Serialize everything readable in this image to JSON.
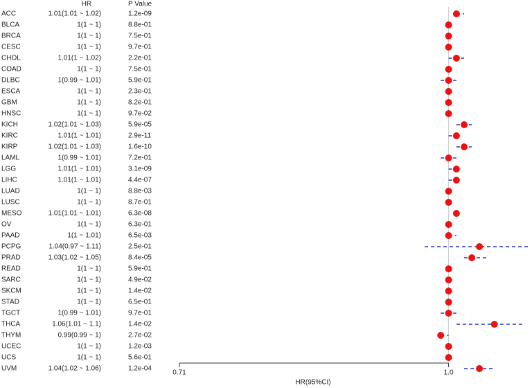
{
  "chart_data": {
    "type": "forest",
    "hr_header": "HR",
    "p_header": "P Value",
    "xlabel": "HR(95%CI)",
    "categories": [
      "ACC",
      "BLCA",
      "BRCA",
      "CESC",
      "CHOL",
      "COAD",
      "DLBC",
      "ESCA",
      "GBM",
      "HNSC",
      "KICH",
      "KIRC",
      "KIRP",
      "LAML",
      "LGG",
      "LIHC",
      "LUAD",
      "LUSC",
      "MESO",
      "OV",
      "PAAD",
      "PCPG",
      "PRAD",
      "READ",
      "SARC",
      "SKCM",
      "STAD",
      "TGCT",
      "THCA",
      "THYM",
      "UCEC",
      "UCS",
      "UVM"
    ],
    "values": [
      1.01,
      1,
      1,
      1,
      1.01,
      1,
      1,
      1,
      1,
      1,
      1.02,
      1.01,
      1.02,
      1,
      1.01,
      1.01,
      1,
      1,
      1.01,
      1,
      1,
      1.04,
      1.03,
      1,
      1,
      1,
      1,
      1,
      1.06,
      0.99,
      1,
      1,
      1.04
    ],
    "lower": [
      1.01,
      1,
      1,
      1,
      1,
      1,
      0.99,
      1,
      1,
      1,
      1.01,
      1,
      1.01,
      0.99,
      1,
      1,
      1,
      1,
      1.01,
      1,
      1,
      0.97,
      1.02,
      1,
      1,
      1,
      1,
      0.99,
      1.01,
      0.99,
      1,
      1,
      1.02
    ],
    "upper": [
      1.02,
      1,
      1,
      1,
      1.02,
      1,
      1.01,
      1,
      1,
      1,
      1.03,
      1.01,
      1.03,
      1.01,
      1.01,
      1.01,
      1,
      1,
      1.01,
      1,
      1.01,
      1.11,
      1.05,
      1,
      1,
      1,
      1,
      1.01,
      1.1,
      1,
      1,
      1,
      1.06
    ],
    "value_labels": [
      "1.01(1.01 ~ 1.02)",
      "1(1 ~ 1)",
      "1(1 ~ 1)",
      "1(1 ~ 1)",
      "1.01(1 ~ 1.02)",
      "1(1 ~ 1)",
      "1(0.99 ~ 1.01)",
      "1(1 ~ 1)",
      "1(1 ~ 1)",
      "1(1 ~ 1)",
      "1.02(1.01 ~ 1.03)",
      "1.01(1 ~ 1.01)",
      "1.02(1.01 ~ 1.03)",
      "1(0.99 ~ 1.01)",
      "1.01(1 ~ 1.01)",
      "1.01(1 ~ 1.01)",
      "1(1 ~ 1)",
      "1(1 ~ 1)",
      "1.01(1.01 ~ 1.01)",
      "1(1 ~ 1)",
      "1(1 ~ 1.01)",
      "1.04(0.97 ~ 1.11)",
      "1.03(1.02 ~ 1.05)",
      "1(1 ~ 1)",
      "1(1 ~ 1)",
      "1(1 ~ 1)",
      "1(1 ~ 1)",
      "1(0.99 ~ 1.01)",
      "1.06(1.01 ~ 1.1)",
      "0.99(0.99 ~ 1)",
      "1(1 ~ 1)",
      "1(1 ~ 1)",
      "1.04(1.02 ~ 1.06)"
    ],
    "p_values": [
      "1.2e-09",
      "8.8e-01",
      "7.5e-01",
      "9.7e-01",
      "2.2e-01",
      "7.5e-01",
      "5.9e-01",
      "2.3e-01",
      "8.2e-01",
      "9.7e-02",
      "5.9e-05",
      "2.9e-11",
      "1.6e-10",
      "7.2e-01",
      "3.1e-09",
      "4.4e-07",
      "8.8e-03",
      "8.7e-01",
      "6.3e-08",
      "6.3e-01",
      "6.5e-03",
      "2.5e-01",
      "8.4e-05",
      "5.9e-01",
      "4.9e-02",
      "1.4e-02",
      "6.5e-01",
      "9.7e-01",
      "1.4e-02",
      "2.7e-02",
      "1.2e-03",
      "5.6e-01",
      "1.2e-04"
    ],
    "xlim": [
      0.71,
      1.11
    ],
    "xticks": [
      {
        "value": 0.71,
        "label": "0.71"
      },
      {
        "value": 1,
        "label": "1.0"
      }
    ],
    "log_x": true,
    "color": "#ee1111",
    "ci_color": "#2233cc"
  }
}
